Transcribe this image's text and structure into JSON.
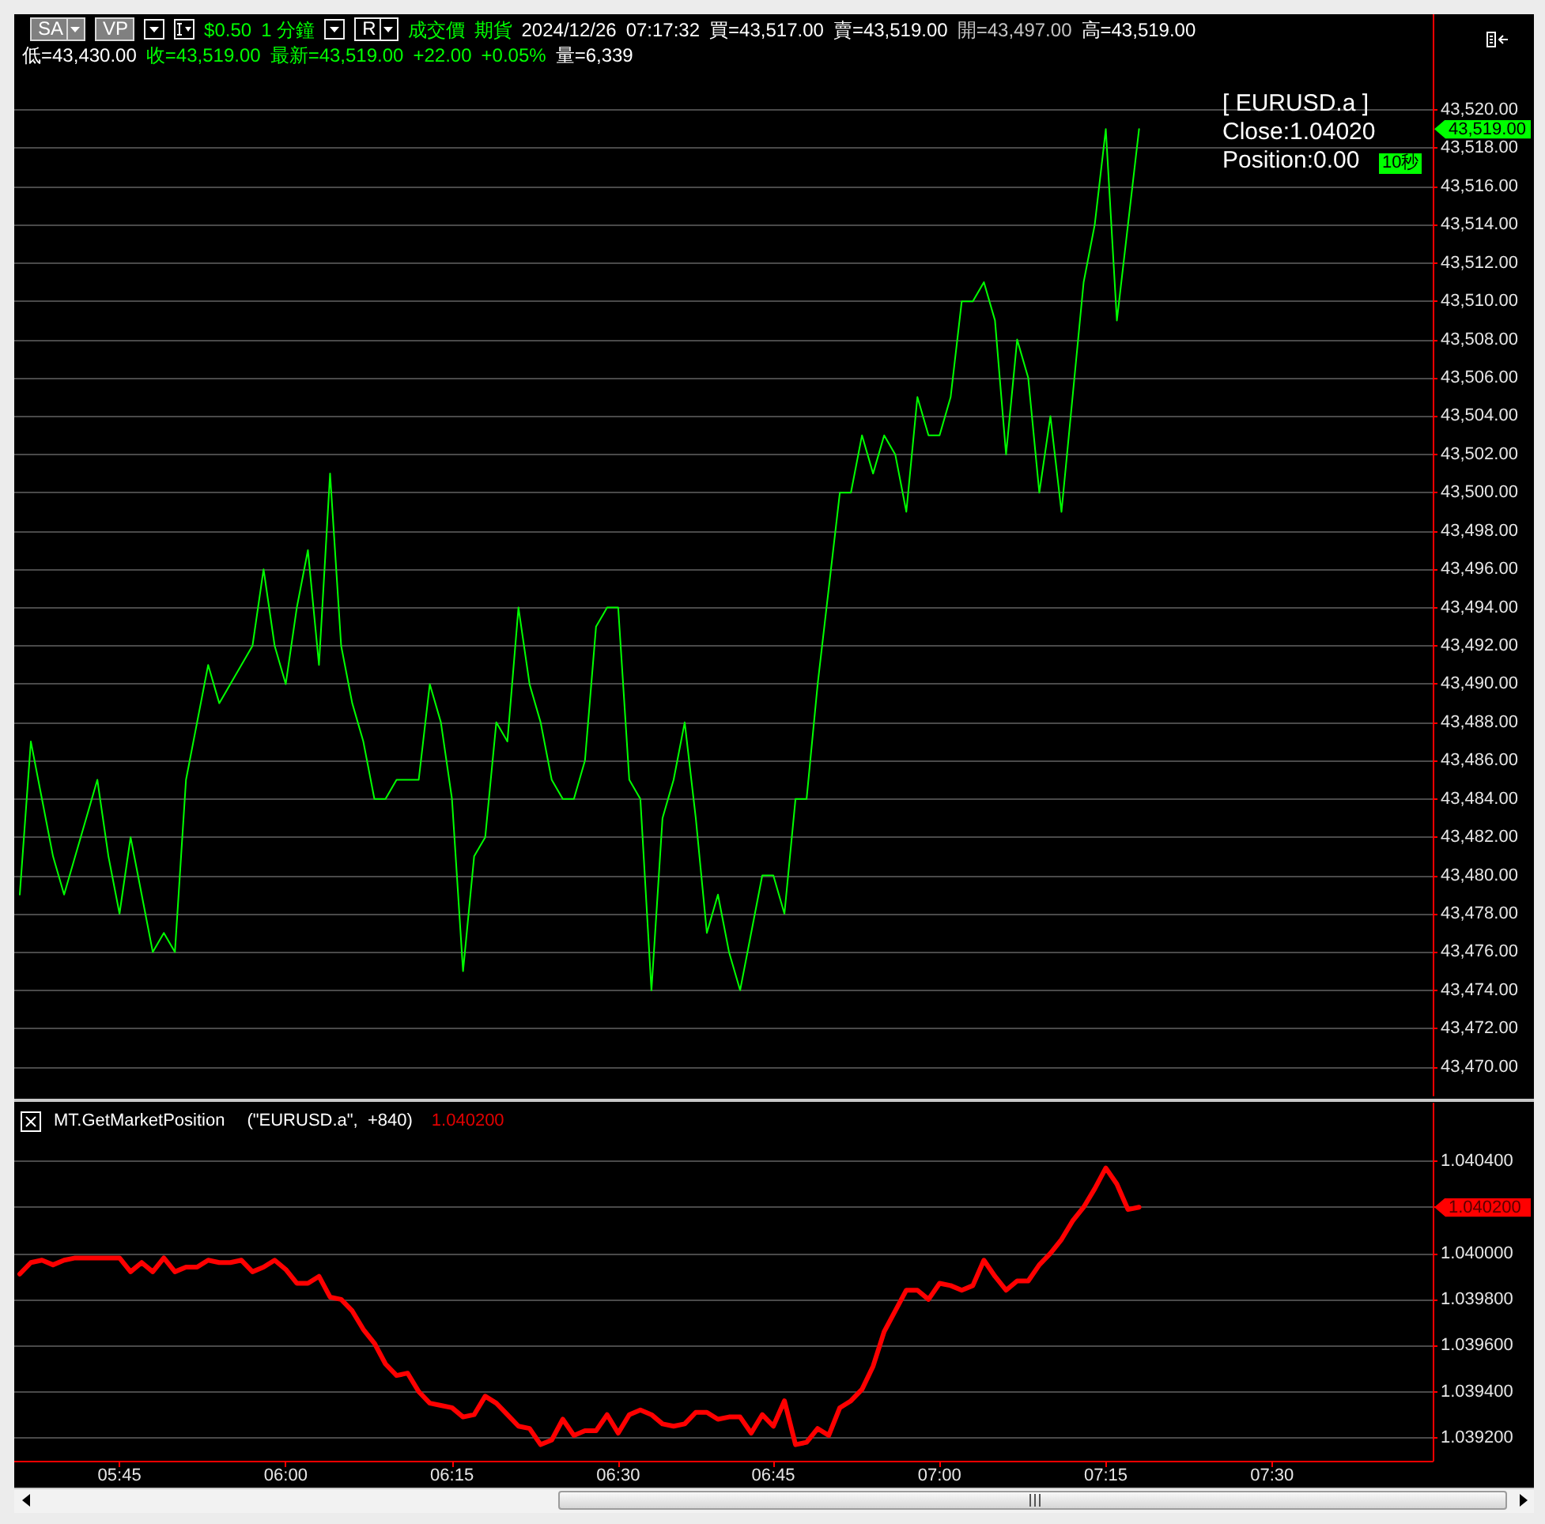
{
  "chart_data": [
    {
      "type": "line",
      "annotations": [
        "SA",
        "VP",
        "$0.50",
        "1 分鐘",
        "R",
        "成交價",
        "期貨",
        "2024/12/26",
        "07:17:32",
        "買=43,517.00",
        "賣=43,519.00",
        "開=43,497.00",
        "高=43,519.00",
        "低=43,430.00",
        "收=43,519.00",
        "最新=43,519.00",
        "+22.00",
        "+0.05%",
        "量=6,339",
        "[ EURUSD.a ]",
        "Close:1.04020",
        "Position:0.00",
        "43,519.00",
        "10秒"
      ],
      "categories": [
        null,
        null,
        null,
        null,
        null,
        null,
        null,
        null,
        null,
        null,
        null,
        null,
        null,
        null,
        null,
        null,
        null,
        null,
        null,
        null,
        null,
        null,
        null,
        null,
        null,
        null,
        null,
        null,
        null,
        null,
        null,
        null,
        null,
        null,
        null,
        null,
        null,
        null,
        null,
        null,
        null,
        null,
        null,
        null,
        null,
        null,
        null,
        null,
        null,
        null,
        null,
        null,
        null,
        null,
        null,
        null,
        null,
        null,
        null,
        null,
        null,
        null,
        null,
        null,
        null,
        null,
        null,
        null,
        null,
        null,
        null,
        null,
        null,
        null,
        null,
        null,
        null,
        null,
        null,
        null,
        null,
        null,
        null,
        null,
        null,
        null,
        null,
        null,
        null,
        null,
        null,
        null,
        null,
        null,
        null,
        null,
        null,
        null,
        null,
        null,
        null,
        null,
        null,
        null,
        null,
        null,
        null,
        null,
        null,
        null,
        null,
        null,
        null,
        null,
        null,
        null,
        null,
        null,
        null,
        null,
        null,
        null,
        null,
        null,
        null,
        null,
        null,
        null
      ],
      "series": [
        {
          "color": "#00ff00",
          "values": [
            43479,
            43487,
            43484,
            43481,
            43479,
            43481,
            43483,
            43485,
            43481,
            43478,
            43482,
            43479,
            43476,
            43477,
            43476,
            43485,
            43488,
            43491,
            43489,
            43490,
            43491,
            43492,
            43496,
            43492,
            43490,
            43494,
            43497,
            43491,
            43501,
            43492,
            43489,
            43487,
            43484,
            43484,
            43485,
            43485,
            43485,
            43490,
            43488,
            43484,
            43475,
            43481,
            43482,
            43488,
            43487,
            43494,
            43490,
            43488,
            43485,
            43484,
            43484,
            43486,
            43493,
            43494,
            43494,
            43485,
            43484,
            43474,
            43483,
            43485,
            43488,
            43483,
            43477,
            43479,
            43476,
            43474,
            43477,
            43480,
            43480,
            43478,
            43484,
            43484,
            43490,
            43495,
            43500,
            43500,
            43503,
            43501,
            43503,
            43502,
            43499,
            43505,
            43503,
            43503,
            43505,
            43510,
            43510,
            43511,
            43509,
            43502,
            43508,
            43506,
            43500,
            43504,
            43499,
            43505,
            43511,
            43514,
            43519,
            43509,
            43514,
            43519,
            null,
            null,
            null,
            null,
            null,
            null,
            null,
            null,
            null,
            null,
            null,
            null,
            null,
            null,
            null,
            null,
            null,
            null,
            null,
            null,
            null,
            null,
            null,
            null,
            null,
            null
          ]
        }
      ],
      "ylim": [
        43468.5,
        43525
      ],
      "yticks": [
        {
          "value": 43470,
          "label": "43,470.00"
        },
        {
          "value": 43472,
          "label": "43,472.00"
        },
        {
          "value": 43474,
          "label": "43,474.00"
        },
        {
          "value": 43476,
          "label": "43,476.00"
        },
        {
          "value": 43478,
          "label": "43,478.00"
        },
        {
          "value": 43480,
          "label": "43,480.00"
        },
        {
          "value": 43482,
          "label": "43,482.00"
        },
        {
          "value": 43484,
          "label": "43,484.00"
        },
        {
          "value": 43486,
          "label": "43,486.00"
        },
        {
          "value": 43488,
          "label": "43,488.00"
        },
        {
          "value": 43490,
          "label": "43,490.00"
        },
        {
          "value": 43492,
          "label": "43,492.00"
        },
        {
          "value": 43494,
          "label": "43,494.00"
        },
        {
          "value": 43496,
          "label": "43,496.00"
        },
        {
          "value": 43498,
          "label": "43,498.00"
        },
        {
          "value": 43500,
          "label": "43,500.00"
        },
        {
          "value": 43502,
          "label": "43,502.00"
        },
        {
          "value": 43504,
          "label": "43,504.00"
        },
        {
          "value": 43506,
          "label": "43,506.00"
        },
        {
          "value": 43508,
          "label": "43,508.00"
        },
        {
          "value": 43510,
          "label": "43,510.00"
        },
        {
          "value": 43512,
          "label": "43,512.00"
        },
        {
          "value": 43514,
          "label": "43,514.00"
        },
        {
          "value": 43516,
          "label": "43,516.00"
        },
        {
          "value": 43518,
          "label": "43,518.00"
        },
        {
          "value": 43520,
          "label": "43,520.00"
        }
      ],
      "grid": "y",
      "tick_labels": "y"
    },
    {
      "type": "line",
      "title": "MT.GetMarketPosition",
      "subtitle": "(\"EURUSD.a\",  +840)",
      "annotations": [
        "1.040200",
        "1.040200"
      ],
      "categories": [
        null,
        null,
        null,
        null,
        null,
        null,
        null,
        null,
        null,
        "05:45",
        null,
        null,
        null,
        null,
        null,
        null,
        null,
        null,
        null,
        null,
        null,
        null,
        null,
        null,
        "06:00",
        null,
        null,
        null,
        null,
        null,
        null,
        null,
        null,
        null,
        null,
        null,
        null,
        null,
        null,
        "06:15",
        null,
        null,
        null,
        null,
        null,
        null,
        null,
        null,
        null,
        null,
        null,
        null,
        null,
        null,
        "06:30",
        null,
        null,
        null,
        null,
        null,
        null,
        null,
        null,
        null,
        null,
        null,
        null,
        null,
        "06:45",
        null,
        null,
        null,
        null,
        null,
        null,
        null,
        null,
        null,
        null,
        null,
        null,
        null,
        null,
        "07:00",
        null,
        null,
        null,
        null,
        null,
        null,
        null,
        null,
        null,
        null,
        null,
        null,
        null,
        null,
        "07:15",
        null,
        null,
        null,
        null,
        null,
        null,
        null,
        null,
        null,
        null,
        null,
        null,
        null,
        null,
        "07:30",
        null,
        null,
        null,
        null,
        null,
        null,
        null,
        null,
        null,
        null,
        null,
        null,
        null,
        null
      ],
      "series": [
        {
          "color": "#ff0000",
          "values": [
            1.03991,
            1.03996,
            1.03997,
            1.03995,
            1.03997,
            1.03998,
            1.03998,
            1.03998,
            1.03998,
            1.03998,
            1.03992,
            1.03996,
            1.03992,
            1.03998,
            1.03992,
            1.03994,
            1.03994,
            1.03997,
            1.03996,
            1.03996,
            1.03997,
            1.03992,
            1.03994,
            1.03997,
            1.03993,
            1.03987,
            1.03987,
            1.0399,
            1.03981,
            1.0398,
            1.03975,
            1.03967,
            1.03961,
            1.03952,
            1.03947,
            1.03948,
            1.0394,
            1.03935,
            1.03934,
            1.03933,
            1.03929,
            1.0393,
            1.03938,
            1.03935,
            1.0393,
            1.03925,
            1.03924,
            1.03917,
            1.03919,
            1.03928,
            1.03921,
            1.03923,
            1.03923,
            1.0393,
            1.03922,
            1.0393,
            1.03932,
            1.0393,
            1.03926,
            1.03925,
            1.03926,
            1.03931,
            1.03931,
            1.03928,
            1.03929,
            1.03929,
            1.03922,
            1.0393,
            1.03925,
            1.03936,
            1.03917,
            1.03918,
            1.03924,
            1.03921,
            1.03933,
            1.03936,
            1.03941,
            1.03951,
            1.03966,
            1.03975,
            1.03984,
            1.03984,
            1.0398,
            1.03987,
            1.03986,
            1.03984,
            1.03986,
            1.03997,
            1.0399,
            1.03984,
            1.03988,
            1.03988,
            1.03995,
            1.04,
            1.04006,
            1.04014,
            1.0402,
            1.04028,
            1.04037,
            1.0403,
            1.04019,
            1.0402,
            null,
            null,
            null,
            null,
            null,
            null,
            null,
            null,
            null,
            null,
            null,
            null,
            null,
            null,
            null,
            null,
            null,
            null,
            null,
            null,
            null,
            null,
            null,
            null,
            null,
            null
          ]
        }
      ],
      "ylim": [
        1.0391,
        1.04065
      ],
      "yticks": [
        {
          "value": 1.0392,
          "label": "1.039200"
        },
        {
          "value": 1.0394,
          "label": "1.039400"
        },
        {
          "value": 1.0396,
          "label": "1.039600"
        },
        {
          "value": 1.0398,
          "label": "1.039800"
        },
        {
          "value": 1.04,
          "label": "1.040000"
        },
        {
          "value": 1.0402,
          "label": null
        },
        {
          "value": 1.0404,
          "label": "1.040400"
        }
      ],
      "grid": "y"
    }
  ]
}
